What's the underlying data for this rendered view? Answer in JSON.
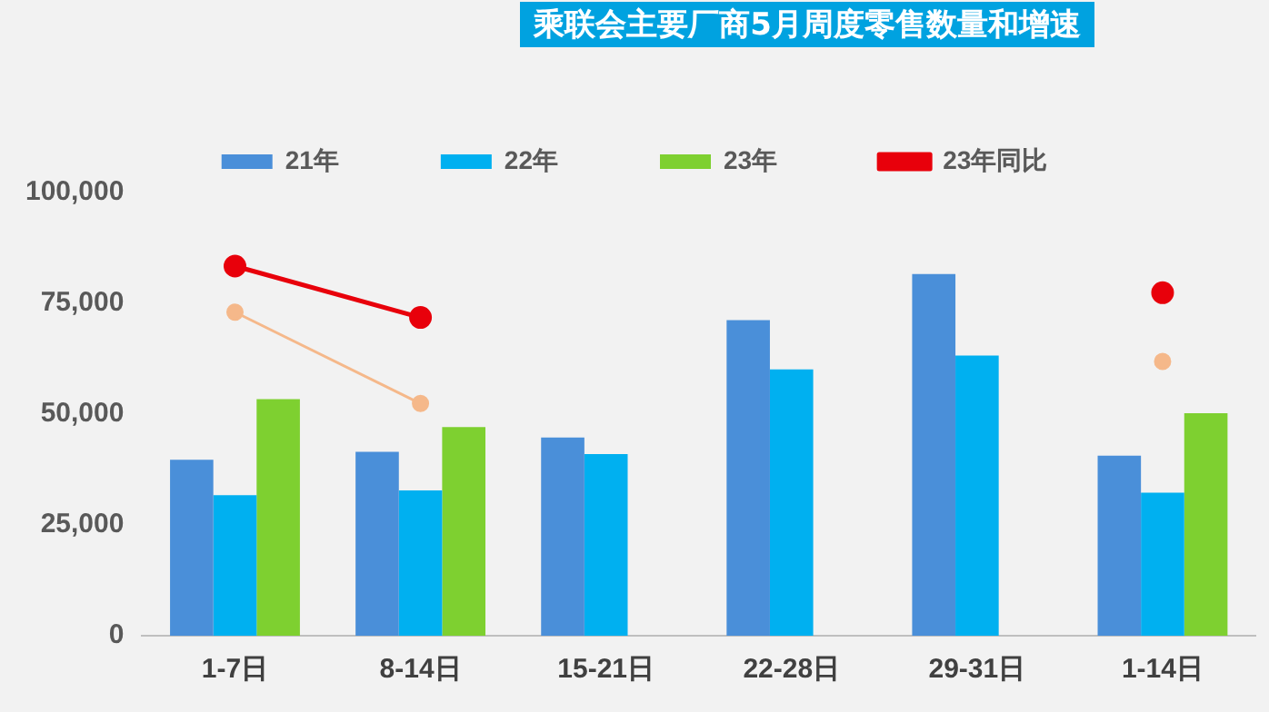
{
  "chart_data": {
    "type": "bar",
    "title": "乘联会主要厂商5月周度零售数量和增速",
    "categories": [
      "1-7日",
      "8-14日",
      "15-21日",
      "22-28日",
      "29-31日",
      "1-14日"
    ],
    "series": [
      {
        "name": "21年",
        "color": "#4a8fd9",
        "values": [
          39700,
          41500,
          44700,
          71200,
          81600,
          40600
        ]
      },
      {
        "name": "22年",
        "color": "#00b0f0",
        "values": [
          31700,
          32800,
          41000,
          60100,
          63200,
          32300
        ]
      },
      {
        "name": "23年",
        "color": "#7ed030",
        "values": [
          53400,
          47100,
          null,
          null,
          null,
          50200
        ]
      },
      {
        "name": "23年同比",
        "type": "line",
        "color": "#e8000b",
        "values": [
          83400,
          71800,
          null,
          null,
          null,
          77400
        ]
      },
      {
        "type": "line",
        "color": "#f5b88a",
        "values": [
          73000,
          52400,
          null,
          null,
          null,
          61900
        ]
      }
    ],
    "ylim": [
      0,
      100000
    ],
    "yticks": [
      0,
      {
        "value": 25000,
        "label": "25,000"
      },
      {
        "value": 50000,
        "label": "50,000"
      },
      {
        "value": 75000,
        "label": "75,000"
      },
      {
        "value": 100000,
        "label": "100,000"
      }
    ],
    "grid": false,
    "legend": "top",
    "marker": "circle"
  }
}
